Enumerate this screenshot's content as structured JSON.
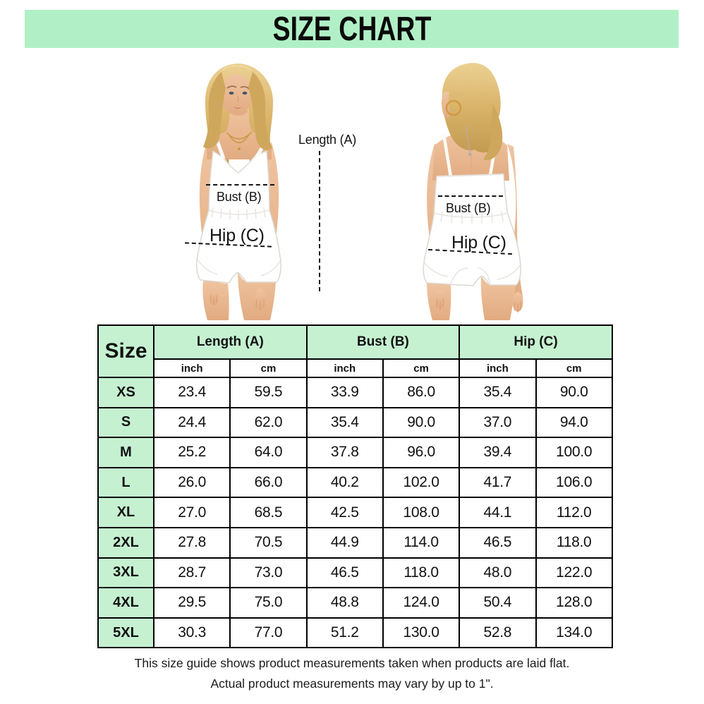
{
  "title": "SIZE CHART",
  "theme": {
    "banner_green": "#b1f0c6",
    "table_header_green": "#c5f1d1",
    "border_color": "#000000",
    "annotation_color": "#141414"
  },
  "diagram": {
    "length_label": "Length (A)",
    "front": {
      "bust_label": "Bust (B)",
      "hip_label": "Hip (C)"
    },
    "back": {
      "bust_label": "Bust (B)",
      "hip_label": "Hip (C)"
    }
  },
  "table": {
    "size_header": "Size",
    "column_groups": [
      "Length (A)",
      "Bust (B)",
      "Hip (C)"
    ],
    "unit_headers": [
      "inch",
      "cm",
      "inch",
      "cm",
      "inch",
      "cm"
    ],
    "rows": [
      {
        "size": "XS",
        "values": [
          "23.4",
          "59.5",
          "33.9",
          "86.0",
          "35.4",
          "90.0"
        ]
      },
      {
        "size": "S",
        "values": [
          "24.4",
          "62.0",
          "35.4",
          "90.0",
          "37.0",
          "94.0"
        ]
      },
      {
        "size": "M",
        "values": [
          "25.2",
          "64.0",
          "37.8",
          "96.0",
          "39.4",
          "100.0"
        ]
      },
      {
        "size": "L",
        "values": [
          "26.0",
          "66.0",
          "40.2",
          "102.0",
          "41.7",
          "106.0"
        ]
      },
      {
        "size": "XL",
        "values": [
          "27.0",
          "68.5",
          "42.5",
          "108.0",
          "44.1",
          "112.0"
        ]
      },
      {
        "size": "2XL",
        "values": [
          "27.8",
          "70.5",
          "44.9",
          "114.0",
          "46.5",
          "118.0"
        ]
      },
      {
        "size": "3XL",
        "values": [
          "28.7",
          "73.0",
          "46.5",
          "118.0",
          "48.0",
          "122.0"
        ]
      },
      {
        "size": "4XL",
        "values": [
          "29.5",
          "75.0",
          "48.8",
          "124.0",
          "50.4",
          "128.0"
        ]
      },
      {
        "size": "5XL",
        "values": [
          "30.3",
          "77.0",
          "51.2",
          "130.0",
          "52.8",
          "134.0"
        ]
      }
    ]
  },
  "footer": {
    "line1": "This size guide shows product measurements taken when products are laid flat.",
    "line2": "Actual product measurements may vary by up to 1\"."
  },
  "chart_data": {
    "type": "table",
    "title": "SIZE CHART",
    "columns": [
      "Size",
      "Length (A) inch",
      "Length (A) cm",
      "Bust (B) inch",
      "Bust (B) cm",
      "Hip (C) inch",
      "Hip (C) cm"
    ],
    "rows": [
      [
        "XS",
        23.4,
        59.5,
        33.9,
        86.0,
        35.4,
        90.0
      ],
      [
        "S",
        24.4,
        62.0,
        35.4,
        90.0,
        37.0,
        94.0
      ],
      [
        "M",
        25.2,
        64.0,
        37.8,
        96.0,
        39.4,
        100.0
      ],
      [
        "L",
        26.0,
        66.0,
        40.2,
        102.0,
        41.7,
        106.0
      ],
      [
        "XL",
        27.0,
        68.5,
        42.5,
        108.0,
        44.1,
        112.0
      ],
      [
        "2XL",
        27.8,
        70.5,
        44.9,
        114.0,
        46.5,
        118.0
      ],
      [
        "3XL",
        28.7,
        73.0,
        46.5,
        118.0,
        48.0,
        122.0
      ],
      [
        "4XL",
        29.5,
        75.0,
        48.8,
        124.0,
        50.4,
        128.0
      ],
      [
        "5XL",
        30.3,
        77.0,
        51.2,
        130.0,
        52.8,
        134.0
      ]
    ],
    "notes": [
      "This size guide shows product measurements taken when products are laid flat.",
      "Actual product measurements may vary by up to 1\"."
    ]
  }
}
